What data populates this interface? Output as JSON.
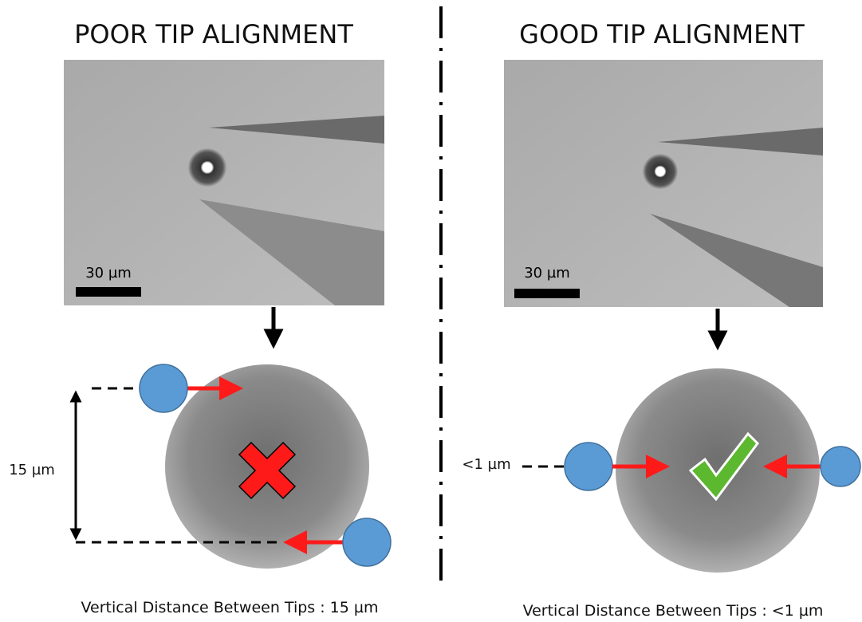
{
  "left": {
    "title": "POOR TIP ALIGNMENT",
    "scale_bar": "30 µm",
    "distance_label": "15 µm",
    "caption": "Vertical Distance Between Tips : 15 µm"
  },
  "right": {
    "title": "GOOD TIP ALIGNMENT",
    "scale_bar": "30 µm",
    "distance_label": "<1 µm",
    "caption": "Vertical Distance Between Tips : <1 µm"
  }
}
